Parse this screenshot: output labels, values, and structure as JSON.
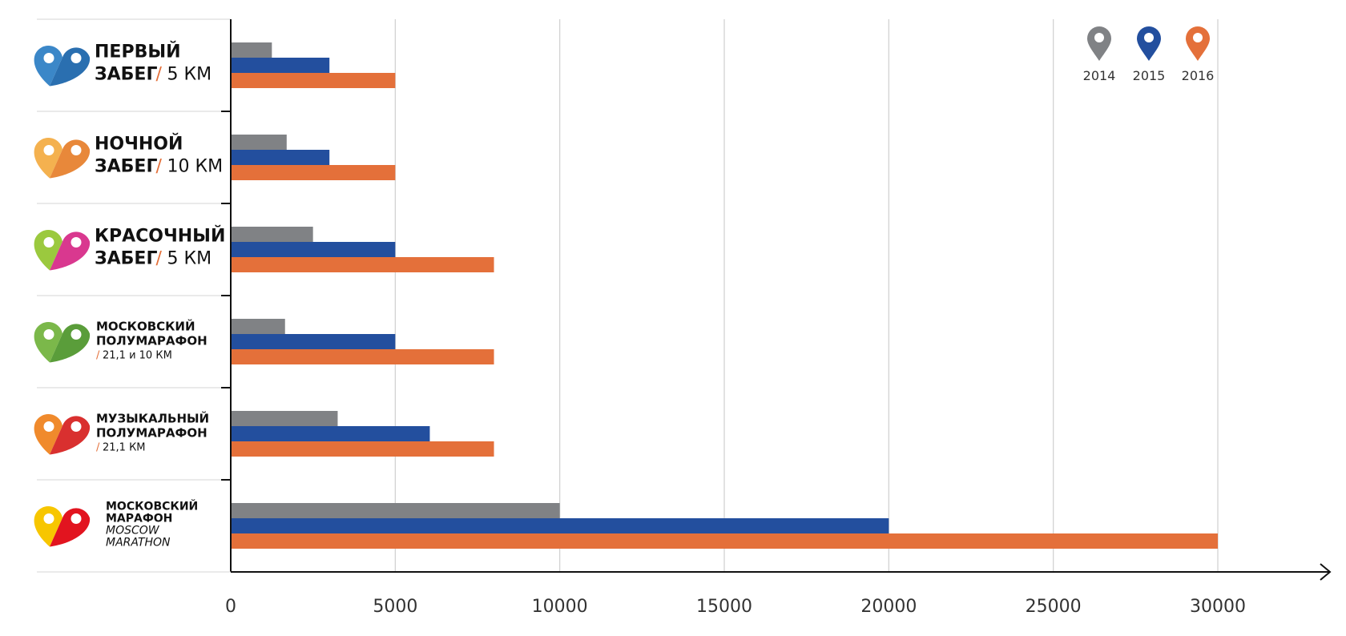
{
  "chart_data": {
    "type": "bar",
    "orientation": "horizontal",
    "categories": [
      {
        "id": "first",
        "line1": "ПЕРВЫЙ",
        "line2": "ЗАБЕГ",
        "dist": "5 КМ",
        "logo_colors": [
          "#3b87c8",
          "#2a6fb0"
        ]
      },
      {
        "id": "night",
        "line1": "НОЧНОЙ",
        "line2": "ЗАБЕГ",
        "dist": "10 КМ",
        "logo_colors": [
          "#f4b14f",
          "#e8883a"
        ]
      },
      {
        "id": "color",
        "line1": "КРАСОЧНЫЙ",
        "line2": "ЗАБЕГ",
        "dist": "5 КМ",
        "logo_colors": [
          "#9bc93e",
          "#d9388f"
        ]
      },
      {
        "id": "halfmarathon",
        "line1": "МОСКОВСКИЙ",
        "line2": "ПОЛУМАРАФОН",
        "dist": "21,1 и 10 КМ",
        "logo_colors": [
          "#7bb84a",
          "#5a9d3a"
        ]
      },
      {
        "id": "musical",
        "line1": "МУЗЫКАЛЬНЫЙ",
        "line2": "ПОЛУМАРАФОН",
        "dist": "21,1 КМ",
        "logo_colors": [
          "#f08a2c",
          "#d9302f"
        ]
      },
      {
        "id": "marathon",
        "line1": "МОСКОВСКИЙ",
        "line2": "МАРАФОН",
        "line3": "MOSCOW",
        "line4": "MARATHON",
        "logo_colors": [
          "#f7c600",
          "#e2141f"
        ]
      }
    ],
    "series": [
      {
        "name": "2014",
        "color": "#808285",
        "values": [
          1250,
          1700,
          2500,
          1650,
          3250,
          10000
        ]
      },
      {
        "name": "2015",
        "color": "#234f9e",
        "values": [
          3000,
          3000,
          5000,
          5000,
          6050,
          20000
        ]
      },
      {
        "name": "2016",
        "color": "#e4703a",
        "values": [
          5000,
          5000,
          8000,
          8000,
          8000,
          30000
        ]
      }
    ],
    "xlim": [
      0,
      33000
    ],
    "xticks": [
      0,
      5000,
      10000,
      15000,
      20000,
      25000,
      30000
    ],
    "grid": true,
    "legend_placement": "top-right",
    "accent_slash_color": "#e4703a"
  }
}
